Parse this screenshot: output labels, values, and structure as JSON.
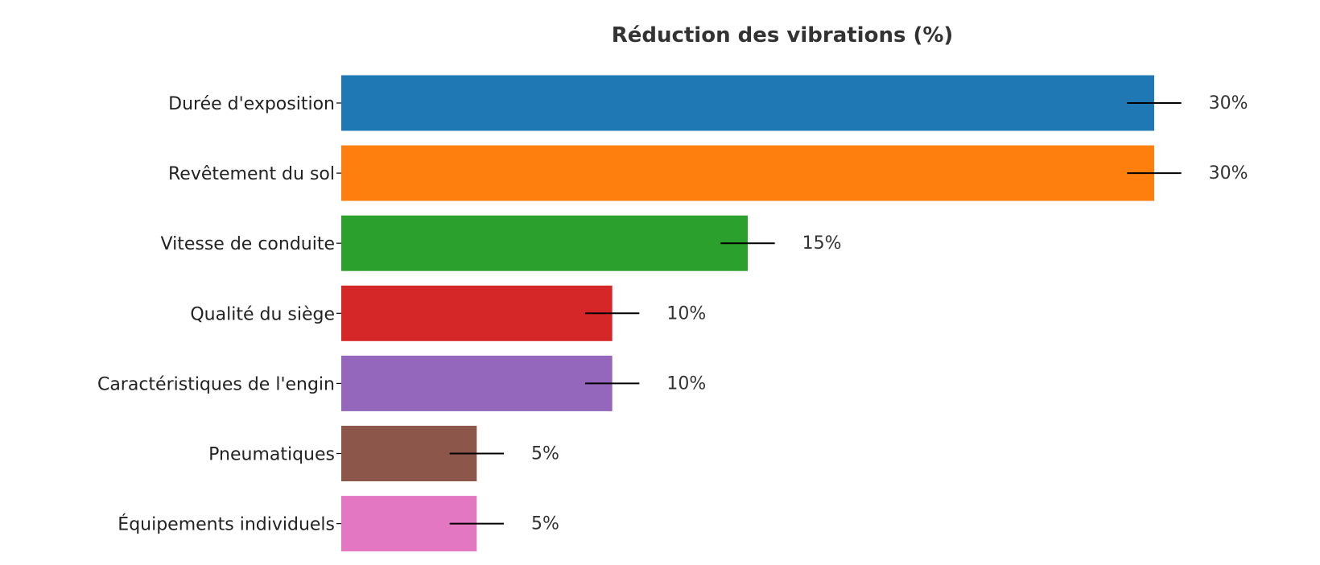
{
  "chart_data": {
    "type": "bar",
    "orientation": "horizontal",
    "title": "Réduction des vibrations (%)",
    "xlabel": "",
    "ylabel": "",
    "categories": [
      "Durée d'exposition",
      "Revêtement du sol",
      "Vitesse de conduite",
      "Qualité du siège",
      "Caractéristiques de l'engin",
      "Pneumatiques",
      "Équipements individuels"
    ],
    "values": [
      30,
      30,
      15,
      10,
      10,
      5,
      5
    ],
    "value_labels": [
      "30%",
      "30%",
      "15%",
      "10%",
      "10%",
      "5%",
      "5%"
    ],
    "error_bars": [
      1,
      1,
      1,
      1,
      1,
      1,
      1
    ],
    "colors": [
      "#1f77b4",
      "#ff7f0e",
      "#2ca02c",
      "#d62728",
      "#9467bd",
      "#8c564b",
      "#e377c2"
    ],
    "xlim": [
      0,
      30
    ],
    "grid": false,
    "legend": "none"
  }
}
